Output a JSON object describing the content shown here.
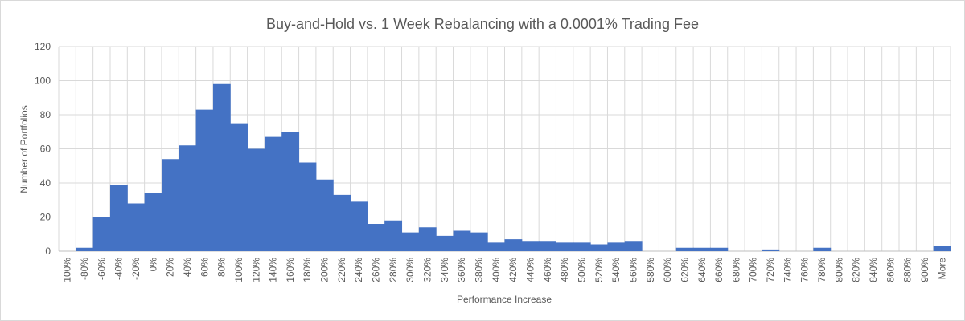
{
  "chart_data": {
    "type": "bar",
    "title": "Buy-and-Hold vs. 1 Week Rebalancing with a 0.0001% Trading Fee",
    "xlabel": "Performance Increase",
    "ylabel": "Number of Portfolios",
    "ylim": [
      0,
      120
    ],
    "yticks": [
      0,
      20,
      40,
      60,
      80,
      100,
      120
    ],
    "grid": true,
    "legend": "none",
    "bar_color": "#4472C4",
    "categories": [
      "-100%",
      "-80%",
      "-60%",
      "-40%",
      "-20%",
      "0%",
      "20%",
      "40%",
      "60%",
      "80%",
      "100%",
      "120%",
      "140%",
      "160%",
      "180%",
      "200%",
      "220%",
      "240%",
      "260%",
      "280%",
      "300%",
      "320%",
      "340%",
      "360%",
      "380%",
      "400%",
      "420%",
      "440%",
      "460%",
      "480%",
      "500%",
      "520%",
      "540%",
      "560%",
      "580%",
      "600%",
      "620%",
      "640%",
      "660%",
      "680%",
      "700%",
      "720%",
      "740%",
      "760%",
      "780%",
      "800%",
      "820%",
      "840%",
      "860%",
      "880%",
      "900%",
      "More"
    ],
    "values": [
      0,
      2,
      20,
      39,
      28,
      34,
      54,
      62,
      83,
      98,
      75,
      60,
      67,
      70,
      52,
      42,
      33,
      29,
      16,
      18,
      11,
      14,
      9,
      12,
      11,
      5,
      7,
      6,
      6,
      5,
      5,
      4,
      5,
      6,
      0,
      0,
      2,
      2,
      2,
      0,
      0,
      1,
      0,
      0,
      2,
      0,
      0,
      0,
      0,
      0,
      0,
      3
    ]
  }
}
